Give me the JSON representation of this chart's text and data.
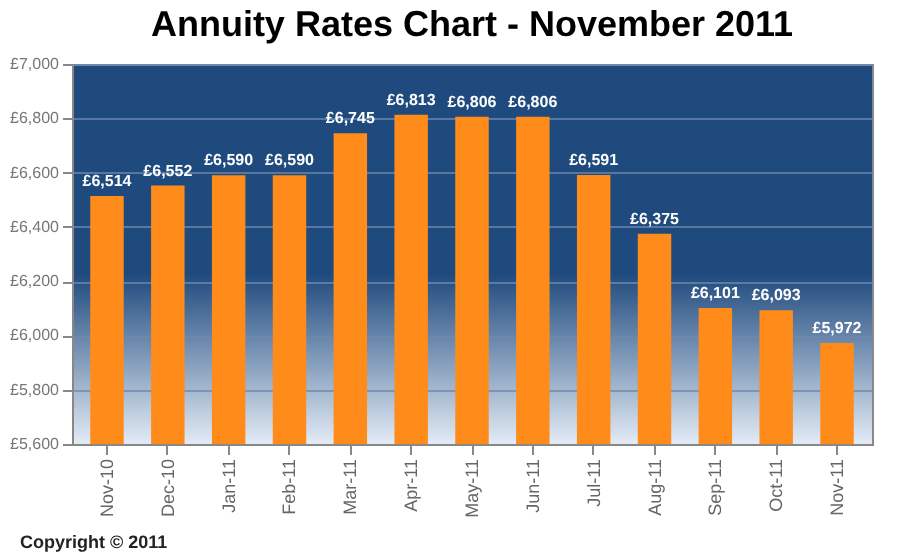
{
  "chart_data": {
    "type": "bar",
    "title": "Annuity Rates Chart - November 2011",
    "categories": [
      "Nov-10",
      "Dec-10",
      "Jan-11",
      "Feb-11",
      "Mar-11",
      "Apr-11",
      "May-11",
      "Jun-11",
      "Jul-11",
      "Aug-11",
      "Sep-11",
      "Oct-11",
      "Nov-11"
    ],
    "values": [
      6514,
      6552,
      6590,
      6590,
      6745,
      6813,
      6806,
      6806,
      6591,
      6375,
      6101,
      6093,
      5972
    ],
    "value_labels": [
      "£6,514",
      "£6,552",
      "£6,590",
      "£6,590",
      "£6,745",
      "£6,813",
      "£6,806",
      "£6,806",
      "£6,591",
      "£6,375",
      "£6,101",
      "£6,093",
      "£5,972"
    ],
    "color": "#ff8c1a",
    "ylim": [
      5600,
      7000
    ],
    "yticks": [
      {
        "value": 5600,
        "label": "£5,600"
      },
      {
        "value": 5800,
        "label": "£5,800"
      },
      {
        "value": 6000,
        "label": "£6,000"
      },
      {
        "value": 6200,
        "label": "£6,200"
      },
      {
        "value": 6400,
        "label": "£6,400"
      },
      {
        "value": 6600,
        "label": "£6,600"
      },
      {
        "value": 6800,
        "label": "£6,800"
      },
      {
        "value": 7000,
        "label": "£7,000"
      }
    ],
    "grid": "y",
    "annotations": [
      "Copyright © 2011"
    ]
  }
}
